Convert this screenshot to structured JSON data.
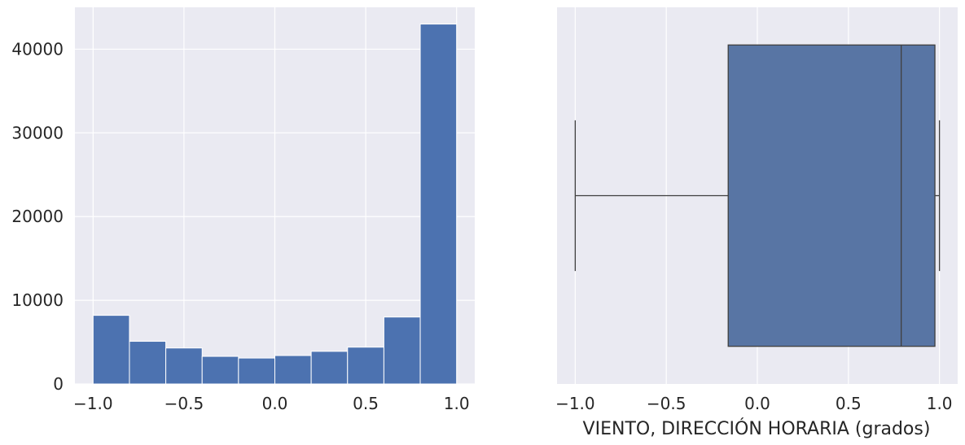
{
  "chart_data": [
    {
      "type": "bar",
      "subtype": "histogram",
      "xlim": [
        -1.1,
        1.1
      ],
      "ylim": [
        0,
        45000
      ],
      "bin_edges": [
        -1.0,
        -0.8,
        -0.6,
        -0.4,
        -0.2,
        0.0,
        0.2,
        0.4,
        0.6,
        0.8,
        1.0
      ],
      "values": [
        8200,
        5100,
        4300,
        3300,
        3100,
        3400,
        3900,
        4400,
        8000,
        43000
      ],
      "xticks": [
        -1.0,
        -0.5,
        0.0,
        0.5,
        1.0
      ],
      "xtick_labels": [
        "−1.0",
        "−0.5",
        "0.0",
        "0.5",
        "1.0"
      ],
      "yticks": [
        0,
        10000,
        20000,
        30000,
        40000
      ],
      "ytick_labels": [
        "0",
        "10000",
        "20000",
        "30000",
        "40000"
      ],
      "grid": true,
      "colors": {
        "bar": "#4C72B0",
        "background": "#EAEAF2",
        "grid": "#FFFFFF"
      }
    },
    {
      "type": "box",
      "xlim": [
        -1.1,
        1.1
      ],
      "box": {
        "whisker_low": -1.0,
        "q1": -0.16,
        "median": 0.79,
        "q3": 0.975,
        "whisker_high": 1.0
      },
      "xticks": [
        -1.0,
        -0.5,
        0.0,
        0.5,
        1.0
      ],
      "xtick_labels": [
        "−1.0",
        "−0.5",
        "0.0",
        "0.5",
        "1.0"
      ],
      "xlabel": "VIENTO, DIRECCIÓN HORARIA (grados)",
      "grid": true,
      "colors": {
        "box": "#5875A4",
        "line": "#3F3F3F",
        "background": "#EAEAF2",
        "grid": "#FFFFFF"
      }
    }
  ]
}
